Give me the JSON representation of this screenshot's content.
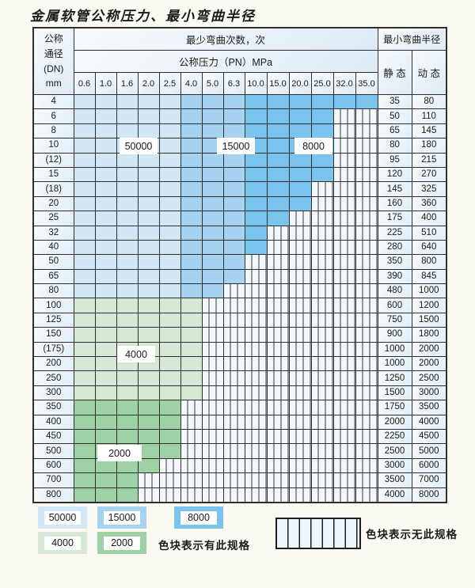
{
  "title": "金属软管公称压力、最小弯曲半径",
  "table": {
    "dn_header_lines": [
      "公称",
      "通径",
      "(DN)",
      "mm"
    ],
    "cycles_header": "最少弯曲次数，次",
    "pressure_header": "公称压力（PN）MPa",
    "radius_header": "最小弯曲半径",
    "static_header": "静 态",
    "dynamic_header": "动 态",
    "pressure_columns": [
      "0.6",
      "1.0",
      "1.6",
      "2.0",
      "2.5",
      "4.0",
      "5.0",
      "6.3",
      "10.0",
      "15.0",
      "20.0",
      "25.0",
      "32.0",
      "35.0"
    ],
    "rows": [
      {
        "dn": "4",
        "band": "blue",
        "colored_cols": 14,
        "colored_through": "35.0",
        "static": "35",
        "dynamic": "80"
      },
      {
        "dn": "6",
        "band": "blue",
        "colored_cols": 12,
        "colored_through": "25.0",
        "static": "50",
        "dynamic": "110"
      },
      {
        "dn": "8",
        "band": "blue",
        "colored_cols": 12,
        "colored_through": "25.0",
        "static": "65",
        "dynamic": "145"
      },
      {
        "dn": "10",
        "band": "blue",
        "colored_cols": 12,
        "colored_through": "25.0",
        "static": "80",
        "dynamic": "180"
      },
      {
        "dn": "(12)",
        "band": "blue",
        "colored_cols": 12,
        "colored_through": "25.0",
        "static": "95",
        "dynamic": "215"
      },
      {
        "dn": "15",
        "band": "blue",
        "colored_cols": 12,
        "colored_through": "25.0",
        "static": "120",
        "dynamic": "270"
      },
      {
        "dn": "(18)",
        "band": "blue",
        "colored_cols": 11,
        "colored_through": "20.0",
        "static": "145",
        "dynamic": "325"
      },
      {
        "dn": "20",
        "band": "blue",
        "colored_cols": 11,
        "colored_through": "20.0",
        "static": "160",
        "dynamic": "360"
      },
      {
        "dn": "25",
        "band": "blue",
        "colored_cols": 10,
        "colored_through": "15.0",
        "static": "175",
        "dynamic": "400"
      },
      {
        "dn": "32",
        "band": "blue",
        "colored_cols": 9,
        "colored_through": "10.0",
        "static": "225",
        "dynamic": "510"
      },
      {
        "dn": "40",
        "band": "blue",
        "colored_cols": 9,
        "colored_through": "10.0",
        "static": "280",
        "dynamic": "640"
      },
      {
        "dn": "50",
        "band": "blue",
        "colored_cols": 8,
        "colored_through": "6.3",
        "static": "350",
        "dynamic": "800"
      },
      {
        "dn": "65",
        "band": "blue",
        "colored_cols": 8,
        "colored_through": "6.3",
        "static": "390",
        "dynamic": "845"
      },
      {
        "dn": "80",
        "band": "blue",
        "colored_cols": 7,
        "colored_through": "5.0",
        "static": "480",
        "dynamic": "1000"
      },
      {
        "dn": "100",
        "band": "green_light",
        "colored_cols": 6,
        "colored_through": "4.0",
        "static": "600",
        "dynamic": "1200"
      },
      {
        "dn": "125",
        "band": "green_light",
        "colored_cols": 6,
        "colored_through": "4.0",
        "static": "750",
        "dynamic": "1500"
      },
      {
        "dn": "150",
        "band": "green_light",
        "colored_cols": 6,
        "colored_through": "4.0",
        "static": "900",
        "dynamic": "1800"
      },
      {
        "dn": "(175)",
        "band": "green_light",
        "colored_cols": 6,
        "colored_through": "4.0",
        "static": "1000",
        "dynamic": "2000"
      },
      {
        "dn": "200",
        "band": "green_light",
        "colored_cols": 6,
        "colored_through": "4.0",
        "static": "1000",
        "dynamic": "2000"
      },
      {
        "dn": "250",
        "band": "green_light",
        "colored_cols": 6,
        "colored_through": "4.0",
        "static": "1250",
        "dynamic": "2500"
      },
      {
        "dn": "300",
        "band": "green_light",
        "colored_cols": 6,
        "colored_through": "4.0",
        "static": "1500",
        "dynamic": "3000"
      },
      {
        "dn": "350",
        "band": "green_medium",
        "colored_cols": 5,
        "colored_through": "2.5",
        "static": "1750",
        "dynamic": "3500"
      },
      {
        "dn": "400",
        "band": "green_medium",
        "colored_cols": 5,
        "colored_through": "2.5",
        "static": "2000",
        "dynamic": "4000"
      },
      {
        "dn": "450",
        "band": "green_medium",
        "colored_cols": 5,
        "colored_through": "2.5",
        "static": "2250",
        "dynamic": "4500"
      },
      {
        "dn": "500",
        "band": "green_medium",
        "colored_cols": 5,
        "colored_through": "2.5",
        "static": "2500",
        "dynamic": "5000"
      },
      {
        "dn": "600",
        "band": "green_medium",
        "colored_cols": 4,
        "colored_through": "2.0",
        "static": "3000",
        "dynamic": "6000"
      },
      {
        "dn": "700",
        "band": "green_medium",
        "colored_cols": 3,
        "colored_through": "1.6",
        "static": "3500",
        "dynamic": "7000"
      },
      {
        "dn": "800",
        "band": "green_medium",
        "colored_cols": 3,
        "colored_through": "1.6",
        "static": "4000",
        "dynamic": "8000"
      }
    ],
    "blue_column_bands": {
      "light_cols": "0.6-2.5",
      "medium_cols": "4.0-6.3",
      "dark_cols": "10.0-35.0"
    }
  },
  "region_labels": [
    {
      "text": "50000"
    },
    {
      "text": "15000"
    },
    {
      "text": "8000"
    },
    {
      "text": "4000"
    },
    {
      "text": "2000"
    }
  ],
  "legend": {
    "swatches": [
      {
        "label": "50000",
        "color": "#d2e7f5"
      },
      {
        "label": "15000",
        "color": "#a6d4f0"
      },
      {
        "label": "8000",
        "color": "#79c3ec"
      },
      {
        "label": "4000",
        "color": "#d7e9d6"
      },
      {
        "label": "2000",
        "color": "#9ed2a5"
      }
    ],
    "has_spec_text": "色块表示有此规格",
    "no_spec_text": "色块表示无此规格"
  },
  "colors": {
    "blue_light": "#d2e7f5",
    "blue_medium": "#a6d4f0",
    "blue_dark": "#79c3ec",
    "green_light": "#d7e9d6",
    "green_medium": "#9ed2a5",
    "grid_line": "#2e2e2e",
    "page_bg": "#fafaf2",
    "striped_bg": "#f3f8fc"
  }
}
